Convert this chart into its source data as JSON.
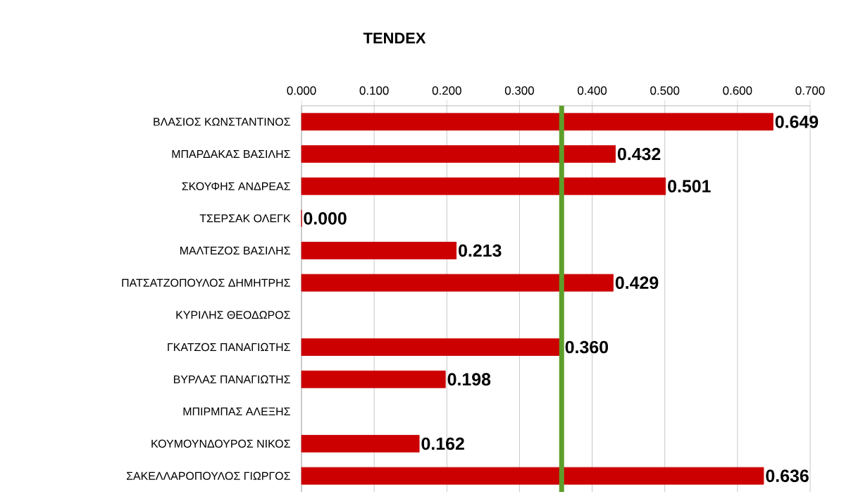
{
  "chart_data": {
    "type": "bar",
    "orientation": "horizontal",
    "title": "TENDEX",
    "categories": [
      "ΒΛΑΣΙΟΣ ΚΩΝΣΤΑΝΤΙΝΟΣ",
      "ΜΠΑΡΔΑΚΑΣ ΒΑΣΙΛΗΣ",
      "ΣΚΟΥΦΗΣ ΑΝΔΡΕΑΣ",
      "ΤΣΕΡΣΑΚ ΟΛΕΓΚ",
      "ΜΑΛΤΕΖΟΣ ΒΑΣΙΛΗΣ",
      "ΠΑΤΣΑΤΖΟΠΟΥΛΟΣ ΔΗΜΗΤΡΗΣ",
      "ΚΥΡΙΛΗΣ ΘΕΟΔΩΡΟΣ",
      "ΓΚΑΤΖΟΣ ΠΑΝΑΓΙΩΤΗΣ",
      "ΒΥΡΛΑΣ ΠΑΝΑΓΙΩΤΗΣ",
      "ΜΠΙΡΜΠΑΣ ΑΛΕΞΗΣ",
      "ΚΟΥΜΟΥΝΔΟΥΡΟΣ ΝΙΚΟΣ",
      "ΣΑΚΕΛΛΑΡΟΠΟΥΛΟΣ ΓΙΩΡΓΟΣ"
    ],
    "values": [
      0.649,
      0.432,
      0.501,
      0.0,
      0.213,
      0.429,
      null,
      0.36,
      0.198,
      null,
      0.162,
      0.636
    ],
    "value_labels": [
      "0.649",
      "0.432",
      "0.501",
      "0.000",
      "0.213",
      "0.429",
      null,
      "0.360",
      "0.198",
      null,
      "0.162",
      "0.636"
    ],
    "color": "#cc0000",
    "xlim": [
      0,
      0.7
    ],
    "xticks": [
      {
        "value": 0,
        "label": "0.000"
      },
      {
        "value": 0.1,
        "label": "0.100"
      },
      {
        "value": 0.2,
        "label": "0.200"
      },
      {
        "value": 0.3,
        "label": "0.300"
      },
      {
        "value": 0.4,
        "label": "0.400"
      },
      {
        "value": 0.5,
        "label": "0.500"
      },
      {
        "value": 0.6,
        "label": "0.600"
      },
      {
        "value": 0.7,
        "label": "0.700"
      }
    ],
    "grid": "x",
    "ref_lines": [
      {
        "axis": "x",
        "value": 0.358,
        "color": "#5e9e2a"
      }
    ]
  }
}
